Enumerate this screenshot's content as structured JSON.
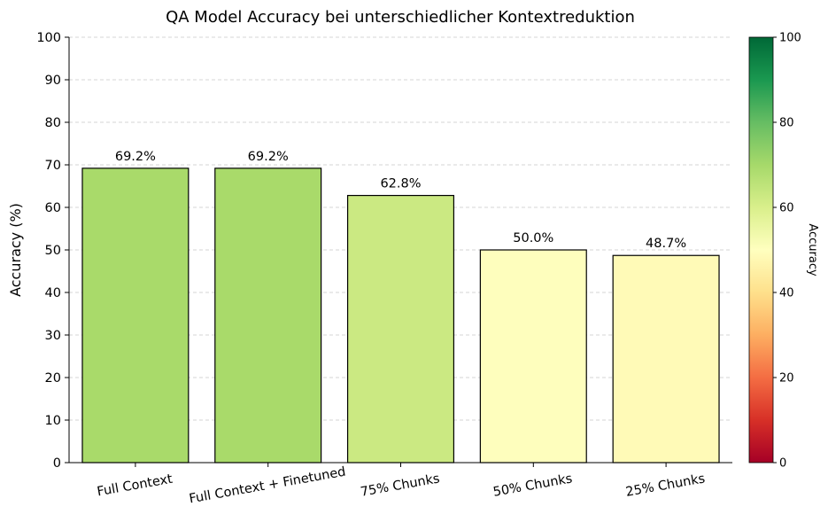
{
  "chart_data": {
    "type": "bar",
    "title": "QA Model Accuracy bei unterschiedlicher Kontextreduktion",
    "xlabel": "",
    "ylabel": "Accuracy (%)",
    "categories": [
      "Full Context",
      "Full Context + Finetuned",
      "75% Chunks",
      "50% Chunks",
      "25% Chunks"
    ],
    "values": [
      69.2,
      69.2,
      62.8,
      50.0,
      48.7
    ],
    "data_labels": [
      "69.2%",
      "69.2%",
      "62.8%",
      "50.0%",
      "48.7%"
    ],
    "bar_colors": [
      "#a9da6a",
      "#a9da6a",
      "#cbe982",
      "#fefebd",
      "#fffab7"
    ],
    "ylim": [
      0,
      100
    ],
    "yticks": [
      "0",
      "10",
      "20",
      "30",
      "40",
      "50",
      "60",
      "70",
      "80",
      "90",
      "100"
    ],
    "grid": "horizontal dashed",
    "colorbar": {
      "label": "Accuracy",
      "range": [
        0,
        100
      ],
      "ticks": [
        "0",
        "20",
        "40",
        "60",
        "80",
        "100"
      ],
      "colormap": "RdYlGn",
      "stops": [
        "#a50026",
        "#d73027",
        "#f46d43",
        "#fdae61",
        "#fee08b",
        "#ffffbf",
        "#d9ef8b",
        "#a6d96a",
        "#66bd63",
        "#1a9850",
        "#006837"
      ]
    }
  }
}
